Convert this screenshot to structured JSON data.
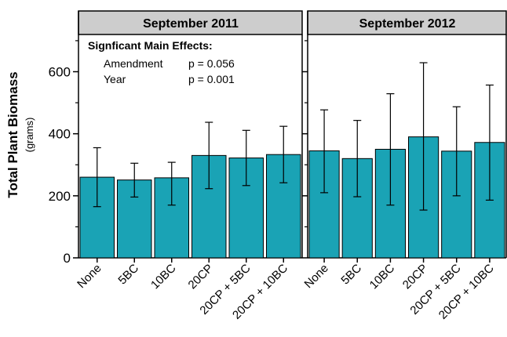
{
  "figure": {
    "ylabel": "Total Plant Biomass",
    "yunit": "(grams)",
    "bar_color": "#1aa3b5",
    "header_color": "#cdcdcd"
  },
  "annotation": {
    "title": "Signficant Main Effects:",
    "rows": [
      {
        "label": "Amendment",
        "value": "p = 0.056"
      },
      {
        "label": "Year",
        "value": "p = 0.001"
      }
    ]
  },
  "chart_data": [
    {
      "type": "bar",
      "title": "September 2011",
      "categories": [
        "None",
        "5BC",
        "10BC",
        "20CP",
        "20CP + 5BC",
        "20CP + 10BC"
      ],
      "values": [
        260,
        251,
        258,
        330,
        322,
        333
      ],
      "error_low": [
        165,
        196,
        170,
        223,
        233,
        242
      ],
      "error_high": [
        355,
        305,
        308,
        437,
        411,
        424
      ],
      "ylim": [
        0,
        720
      ],
      "yticks": [
        0,
        200,
        400,
        600
      ],
      "grid": false,
      "xlabel": "",
      "ylabel": "Total Plant Biomass"
    },
    {
      "type": "bar",
      "title": "September 2012",
      "categories": [
        "None",
        "5BC",
        "10BC",
        "20CP",
        "20CP + 5BC",
        "20CP + 10BC"
      ],
      "values": [
        345,
        320,
        350,
        390,
        344,
        372
      ],
      "error_low": [
        210,
        197,
        170,
        154,
        200,
        186
      ],
      "error_high": [
        477,
        443,
        529,
        629,
        487,
        557
      ],
      "ylim": [
        0,
        720
      ],
      "yticks": [
        0,
        200,
        400,
        600
      ],
      "grid": false,
      "xlabel": "",
      "ylabel": ""
    }
  ]
}
